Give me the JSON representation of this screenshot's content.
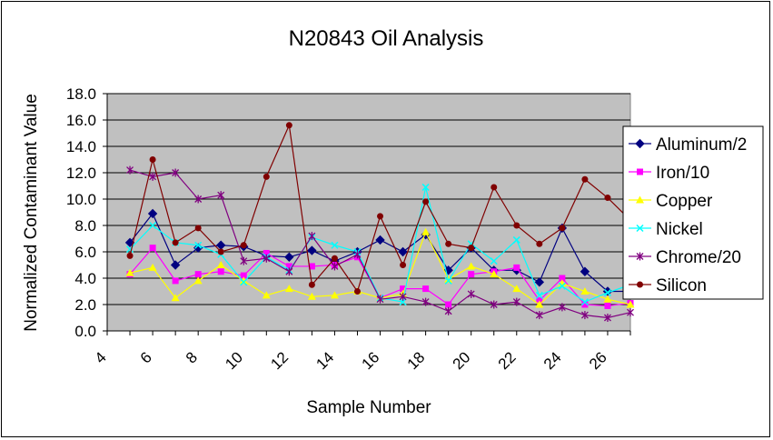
{
  "chart_data": {
    "type": "line",
    "title": "N20843 Oil Analysis",
    "xlabel": "Sample Number",
    "ylabel": "Normalized Contaminant Value",
    "ylim": [
      0,
      18
    ],
    "yticks": [
      "0.0",
      "2.0",
      "4.0",
      "6.0",
      "8.0",
      "10.0",
      "12.0",
      "14.0",
      "16.0",
      "18.0"
    ],
    "xlim": [
      4,
      27
    ],
    "xticks": [
      "4",
      "6",
      "8",
      "10",
      "12",
      "14",
      "16",
      "18",
      "20",
      "22",
      "24",
      "26"
    ],
    "x": [
      5,
      6,
      7,
      8,
      9,
      10,
      11,
      12,
      13,
      14,
      15,
      16,
      17,
      18,
      19,
      20,
      21,
      22,
      23,
      24,
      25,
      26,
      27
    ],
    "grid": "horizontal",
    "plot_background": "#c0c0c0",
    "legend_position": "right",
    "series": [
      {
        "name": "Aluminum/2",
        "color": "#000080",
        "marker": "diamond",
        "values": [
          6.7,
          8.9,
          5.0,
          6.3,
          6.5,
          6.4,
          5.7,
          5.6,
          6.1,
          5.3,
          6.0,
          6.9,
          6.0,
          7.3,
          4.6,
          6.3,
          4.6,
          4.6,
          3.7,
          7.8,
          4.5,
          3.0,
          3.0
        ]
      },
      {
        "name": "Iron/10",
        "color": "#ff00ff",
        "marker": "square",
        "values": [
          4.3,
          6.3,
          3.8,
          4.3,
          4.5,
          4.2,
          5.9,
          4.9,
          4.9,
          5.0,
          5.6,
          2.5,
          3.2,
          3.2,
          2.0,
          4.3,
          4.5,
          4.8,
          2.3,
          4.0,
          2.0,
          1.9,
          2.1
        ]
      },
      {
        "name": "Copper",
        "color": "#ffff00",
        "marker": "triangle",
        "values": [
          4.4,
          4.8,
          2.5,
          3.8,
          5.0,
          3.8,
          2.7,
          3.2,
          2.6,
          2.7,
          3.0,
          2.5,
          2.8,
          7.5,
          3.9,
          4.9,
          4.3,
          3.2,
          2.0,
          3.6,
          3.0,
          2.4,
          2.0
        ]
      },
      {
        "name": "Nickel",
        "color": "#00ffff",
        "marker": "x",
        "values": [
          6.2,
          8.0,
          6.7,
          6.5,
          5.8,
          3.7,
          5.6,
          4.6,
          7.1,
          6.5,
          6.0,
          2.5,
          2.2,
          10.9,
          3.8,
          6.6,
          5.3,
          6.9,
          2.7,
          3.4,
          2.2,
          2.9,
          3.5
        ]
      },
      {
        "name": "Chrome/20",
        "color": "#800080",
        "marker": "star",
        "values": [
          12.2,
          11.7,
          12.0,
          10.0,
          10.3,
          5.3,
          5.5,
          4.5,
          7.2,
          4.9,
          5.8,
          2.4,
          2.6,
          2.2,
          1.5,
          2.8,
          2.0,
          2.2,
          1.2,
          1.8,
          1.2,
          1.0,
          1.4
        ]
      },
      {
        "name": "Silicon",
        "color": "#800000",
        "marker": "circle",
        "values": [
          5.7,
          13.0,
          6.7,
          7.8,
          6.0,
          6.5,
          11.7,
          15.6,
          3.5,
          5.5,
          3.0,
          8.7,
          5.0,
          9.8,
          6.6,
          6.3,
          10.9,
          8.0,
          6.6,
          7.8,
          11.5,
          10.1,
          8.4
        ]
      }
    ]
  }
}
